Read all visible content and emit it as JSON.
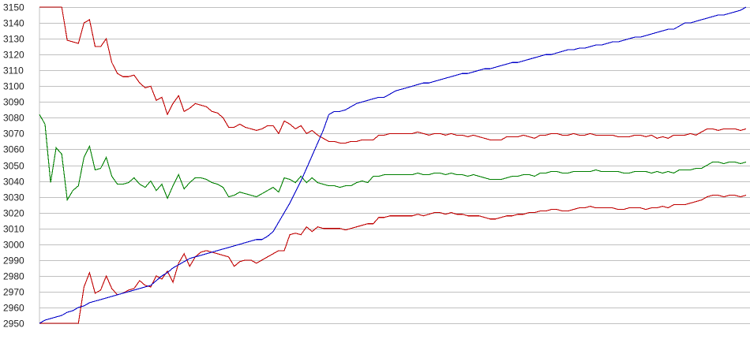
{
  "chart_data": {
    "type": "line",
    "title": "",
    "xlabel": "",
    "ylabel": "",
    "ylim": [
      2950,
      3150
    ],
    "yticks": [
      3150,
      3140,
      3130,
      3120,
      3110,
      3100,
      3090,
      3080,
      3070,
      3060,
      3050,
      3040,
      3030,
      3020,
      3010,
      3000,
      2990,
      2980,
      2970,
      2960,
      2950
    ],
    "grid": "horizontal",
    "x_count": 128,
    "series": [
      {
        "color": "#c00000",
        "values": [
          3150,
          3150,
          3150,
          3150,
          3150,
          3129,
          3128,
          3127,
          3140,
          3142,
          3125,
          3125,
          3130,
          3115,
          3108,
          3106,
          3106,
          3107,
          3102,
          3099,
          3100,
          3091,
          3093,
          3082,
          3089,
          3094,
          3084,
          3086,
          3089,
          3088,
          3087,
          3084,
          3083,
          3080,
          3074,
          3074,
          3076,
          3074,
          3073,
          3072,
          3073,
          3075,
          3075,
          3070,
          3078,
          3076,
          3073,
          3075,
          3070,
          3072,
          3069,
          3067,
          3065,
          3065,
          3064,
          3064,
          3065,
          3065,
          3066,
          3066,
          3066,
          3069,
          3069,
          3070,
          3070,
          3070,
          3070,
          3070,
          3071,
          3070,
          3069,
          3070,
          3070,
          3069,
          3070,
          3069,
          3069,
          3068,
          3069,
          3068,
          3067,
          3066,
          3066,
          3066,
          3068,
          3068,
          3068,
          3069,
          3068,
          3067,
          3069,
          3069,
          3070,
          3070,
          3069,
          3069,
          3070,
          3069,
          3069,
          3070,
          3069,
          3069,
          3069,
          3069,
          3068,
          3068,
          3068,
          3069,
          3069,
          3068,
          3069,
          3067,
          3068,
          3067,
          3069,
          3069,
          3069,
          3070,
          3069,
          3071,
          3073,
          3073,
          3072,
          3073,
          3073,
          3073,
          3072,
          3073
        ]
      },
      {
        "color": "#008000",
        "values": [
          3082,
          3076,
          3039,
          3061,
          3057,
          3028,
          3034,
          3037,
          3055,
          3062,
          3047,
          3048,
          3055,
          3043,
          3038,
          3038,
          3039,
          3042,
          3038,
          3036,
          3040,
          3034,
          3038,
          3029,
          3037,
          3044,
          3035,
          3039,
          3042,
          3042,
          3041,
          3039,
          3038,
          3036,
          3030,
          3031,
          3033,
          3032,
          3031,
          3030,
          3032,
          3034,
          3036,
          3033,
          3042,
          3041,
          3039,
          3043,
          3039,
          3042,
          3039,
          3038,
          3037,
          3037,
          3036,
          3037,
          3037,
          3039,
          3040,
          3039,
          3043,
          3043,
          3044,
          3044,
          3044,
          3044,
          3044,
          3044,
          3045,
          3044,
          3044,
          3045,
          3045,
          3044,
          3045,
          3044,
          3044,
          3043,
          3044,
          3043,
          3042,
          3041,
          3041,
          3041,
          3042,
          3043,
          3043,
          3044,
          3044,
          3043,
          3045,
          3045,
          3046,
          3046,
          3045,
          3045,
          3046,
          3046,
          3046,
          3046,
          3047,
          3046,
          3046,
          3046,
          3046,
          3045,
          3045,
          3046,
          3046,
          3046,
          3045,
          3046,
          3045,
          3046,
          3045,
          3047,
          3047,
          3047,
          3048,
          3048,
          3050,
          3052,
          3052,
          3051,
          3052,
          3052,
          3051,
          3052
        ]
      },
      {
        "color": "#c00000",
        "values": [
          2950,
          2950,
          2950,
          2950,
          2950,
          2950,
          2950,
          2950,
          2973,
          2982,
          2969,
          2971,
          2980,
          2972,
          2968,
          2969,
          2971,
          2972,
          2977,
          2974,
          2973,
          2980,
          2978,
          2983,
          2976,
          2988,
          2994,
          2986,
          2992,
          2995,
          2996,
          2995,
          2994,
          2993,
          2992,
          2986,
          2989,
          2990,
          2990,
          2988,
          2990,
          2992,
          2994,
          2996,
          2996,
          3006,
          3007,
          3006,
          3011,
          3008,
          3011,
          3010,
          3010,
          3010,
          3010,
          3009,
          3010,
          3011,
          3012,
          3013,
          3013,
          3017,
          3017,
          3018,
          3018,
          3018,
          3018,
          3018,
          3019,
          3018,
          3019,
          3020,
          3020,
          3019,
          3020,
          3019,
          3019,
          3018,
          3018,
          3018,
          3017,
          3016,
          3016,
          3017,
          3018,
          3018,
          3019,
          3019,
          3020,
          3020,
          3021,
          3021,
          3022,
          3022,
          3021,
          3021,
          3022,
          3023,
          3023,
          3024,
          3023,
          3023,
          3023,
          3023,
          3022,
          3022,
          3023,
          3023,
          3023,
          3022,
          3023,
          3023,
          3024,
          3023,
          3025,
          3025,
          3025,
          3026,
          3027,
          3028,
          3030,
          3031,
          3031,
          3030,
          3031,
          3031,
          3030,
          3031
        ]
      },
      {
        "color": "#0000c8",
        "values": [
          2950,
          2952,
          2953,
          2954,
          2955,
          2957,
          2958,
          2960,
          2961,
          2963,
          2964,
          2965,
          2966,
          2967,
          2968,
          2969,
          2970,
          2971,
          2972,
          2973,
          2974,
          2977,
          2980,
          2982,
          2985,
          2987,
          2989,
          2991,
          2992,
          2993,
          2994,
          2995,
          2996,
          2997,
          2998,
          2999,
          3000,
          3001,
          3002,
          3003,
          3003,
          3005,
          3008,
          3014,
          3020,
          3026,
          3033,
          3040,
          3048,
          3056,
          3064,
          3072,
          3082,
          3084,
          3084,
          3085,
          3087,
          3089,
          3090,
          3091,
          3092,
          3093,
          3093,
          3095,
          3097,
          3098,
          3099,
          3100,
          3101,
          3102,
          3102,
          3103,
          3104,
          3105,
          3106,
          3107,
          3108,
          3108,
          3109,
          3110,
          3111,
          3111,
          3112,
          3113,
          3114,
          3115,
          3115,
          3116,
          3117,
          3118,
          3119,
          3120,
          3120,
          3121,
          3122,
          3123,
          3123,
          3124,
          3124,
          3125,
          3126,
          3126,
          3127,
          3128,
          3128,
          3129,
          3130,
          3131,
          3131,
          3132,
          3133,
          3134,
          3135,
          3136,
          3136,
          3138,
          3140,
          3140,
          3141,
          3142,
          3143,
          3144,
          3145,
          3145,
          3146,
          3147,
          3148,
          3150
        ]
      }
    ]
  }
}
